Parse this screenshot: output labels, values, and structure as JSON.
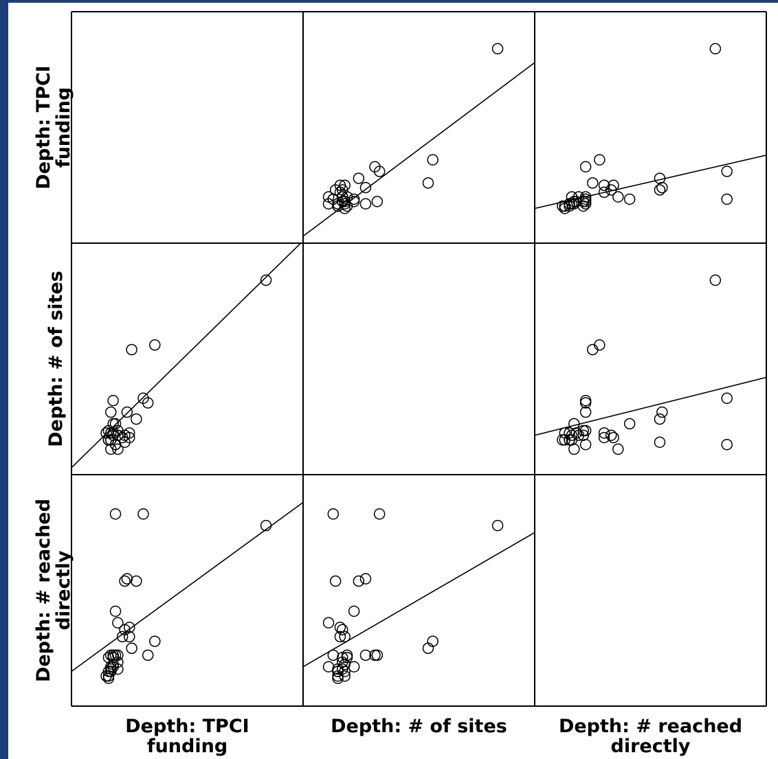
{
  "chart_data": {
    "type": "scatter",
    "title": "",
    "variables": [
      {
        "key": "tpci",
        "label_lines": [
          "Depth: TPCI",
          "funding"
        ]
      },
      {
        "key": "sites",
        "label_lines": [
          "Depth: # of sites"
        ]
      },
      {
        "key": "reached",
        "label_lines": [
          "Depth: # reached",
          "directly"
        ]
      }
    ],
    "axis_ranges": {
      "tpci": [
        0,
        10
      ],
      "sites": [
        0,
        10
      ],
      "reached": [
        0,
        10
      ]
    },
    "grid": false,
    "points": [
      {
        "tpci": 8.4,
        "sites": 8.4,
        "reached": 7.8
      },
      {
        "tpci": 3.1,
        "sites": 3.3,
        "reached": 8.3
      },
      {
        "tpci": 3.3,
        "sites": 3.1,
        "reached": 2.2
      },
      {
        "tpci": 2.8,
        "sites": 2.4,
        "reached": 5.4
      },
      {
        "tpci": 3.6,
        "sites": 5.6,
        "reached": 2.8
      },
      {
        "tpci": 2.6,
        "sites": 5.4,
        "reached": 2.5
      },
      {
        "tpci": 1.8,
        "sites": 1.7,
        "reached": 2.1
      },
      {
        "tpci": 2.4,
        "sites": 2.7,
        "reached": 5.5
      },
      {
        "tpci": 2.2,
        "sites": 1.6,
        "reached": 3.0
      },
      {
        "tpci": 1.8,
        "sites": 3.2,
        "reached": 2.2
      },
      {
        "tpci": 1.9,
        "sites": 1.3,
        "reached": 8.3
      },
      {
        "tpci": 1.6,
        "sites": 1.5,
        "reached": 1.3
      },
      {
        "tpci": 1.8,
        "sites": 2.2,
        "reached": 1.7
      },
      {
        "tpci": 2.0,
        "sites": 1.7,
        "reached": 1.6
      },
      {
        "tpci": 1.7,
        "sites": 1.1,
        "reached": 1.7
      },
      {
        "tpci": 2.3,
        "sites": 1.7,
        "reached": 3.3
      },
      {
        "tpci": 2.3,
        "sites": 1.4,
        "reached": 5.4
      },
      {
        "tpci": 2.5,
        "sites": 1.8,
        "reached": 3.0
      },
      {
        "tpci": 2.0,
        "sites": 1.1,
        "reached": 3.6
      },
      {
        "tpci": 1.7,
        "sites": 1.5,
        "reached": 1.6
      },
      {
        "tpci": 1.7,
        "sites": 1.8,
        "reached": 1.5
      },
      {
        "tpci": 1.7,
        "sites": 1.5,
        "reached": 1.5
      },
      {
        "tpci": 1.9,
        "sites": 1.3,
        "reached": 2.2
      },
      {
        "tpci": 1.6,
        "sites": 1.5,
        "reached": 1.2
      },
      {
        "tpci": 1.5,
        "sites": 1.8,
        "reached": 1.3
      },
      {
        "tpci": 1.8,
        "sites": 1.8,
        "reached": 1.8
      },
      {
        "tpci": 2.0,
        "sites": 1.7,
        "reached": 1.9
      },
      {
        "tpci": 1.6,
        "sites": 1.5,
        "reached": 1.5
      },
      {
        "tpci": 1.7,
        "sites": 2.7,
        "reached": 2.2
      },
      {
        "tpci": 1.9,
        "sites": 2.2,
        "reached": 4.1
      },
      {
        "tpci": 2.5,
        "sites": 1.6,
        "reached": 3.4
      },
      {
        "tpci": 1.6,
        "sites": 1.9,
        "reached": 2.1
      },
      {
        "tpci": 2.0,
        "sites": 1.9,
        "reached": 2.2
      }
    ],
    "fit_lines": [
      {
        "x": "sites",
        "y": "tpci",
        "endpoints": [
          [
            0,
            0.3
          ],
          [
            10,
            7.8
          ]
        ]
      },
      {
        "x": "reached",
        "y": "tpci",
        "endpoints": [
          [
            0,
            1.5
          ],
          [
            10,
            3.8
          ]
        ]
      },
      {
        "x": "tpci",
        "y": "sites",
        "endpoints": [
          [
            0,
            0.3
          ],
          [
            10,
            10.1
          ]
        ]
      },
      {
        "x": "reached",
        "y": "sites",
        "endpoints": [
          [
            0,
            1.7
          ],
          [
            10,
            4.2
          ]
        ]
      },
      {
        "x": "tpci",
        "y": "reached",
        "endpoints": [
          [
            0,
            1.5
          ],
          [
            10,
            8.8
          ]
        ]
      },
      {
        "x": "sites",
        "y": "reached",
        "endpoints": [
          [
            0,
            1.7
          ],
          [
            10,
            7.5
          ]
        ]
      }
    ]
  }
}
